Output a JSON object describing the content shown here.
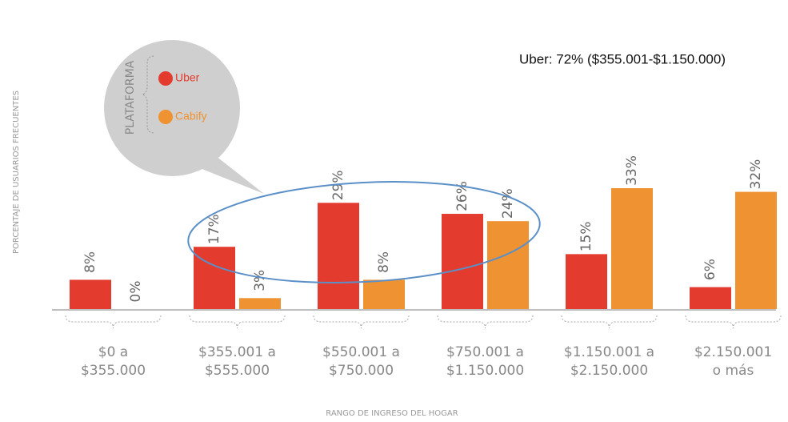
{
  "chart_data": {
    "type": "bar",
    "annotation": "Uber: 72% ($355.001-$1.150.000)",
    "xlabel": "RANGO DE INGRESO DEL HOGAR",
    "ylabel": "PORCENTAJE DE USUARIOS FRECUENTES",
    "legend_title": "PLATAFORMA",
    "categories": [
      [
        "$0 a",
        "$355.000"
      ],
      [
        "$355.001 a",
        "$555.000"
      ],
      [
        "$550.001 a",
        "$750.000"
      ],
      [
        "$750.001 a",
        "$1.150.000"
      ],
      [
        "$1.150.001 a",
        "$2.150.000"
      ],
      [
        "$2.150.001",
        "o más"
      ]
    ],
    "series": [
      {
        "name": "Uber",
        "color": "#e43b2f",
        "values": [
          8,
          17,
          29,
          26,
          15,
          6
        ],
        "value_labels": [
          "8%",
          "17%",
          "29%",
          "26%",
          "15%",
          "6%"
        ]
      },
      {
        "name": "Cabify",
        "color": "#ef9231",
        "values": [
          0,
          3,
          8,
          24,
          33,
          32
        ],
        "value_labels": [
          "0%",
          "3%",
          "8%",
          "24%",
          "33%",
          "32%"
        ]
      }
    ]
  }
}
